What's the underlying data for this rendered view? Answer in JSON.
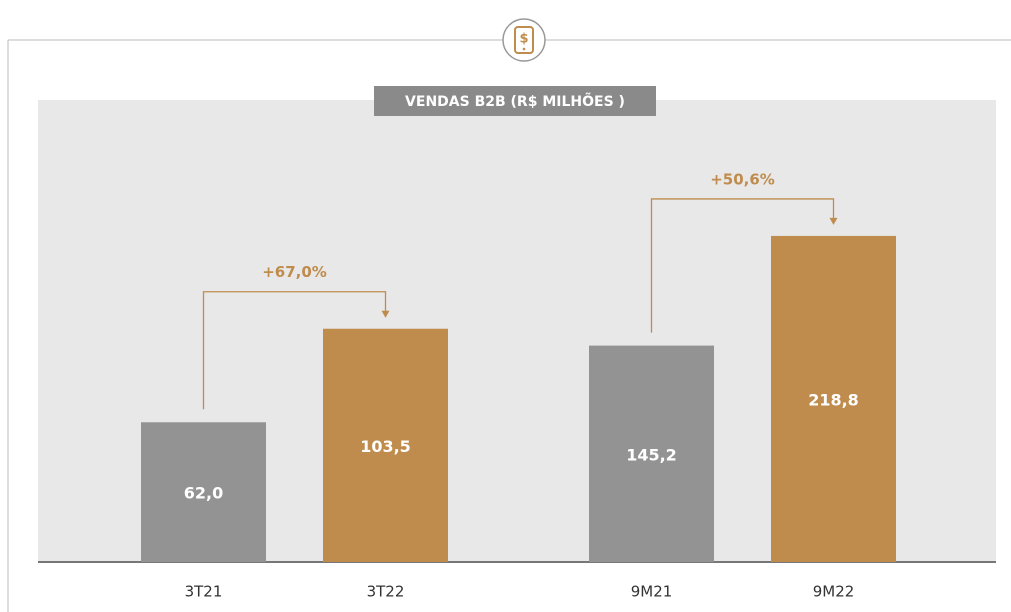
{
  "title": "VENDAS B2B (R$ MILHÕES )",
  "chart_data": [
    {
      "type": "bar",
      "categories": [
        "3T21",
        "3T22"
      ],
      "values": [
        62.0,
        103.5
      ],
      "value_labels": [
        "62,0",
        "103,5"
      ],
      "colors": [
        "#939393",
        "#bf8c4e"
      ],
      "annotation": "+67,0%",
      "ylim": [
        0,
        205
      ]
    },
    {
      "type": "bar",
      "categories": [
        "9M21",
        "9M22"
      ],
      "values": [
        145.2,
        218.8
      ],
      "value_labels": [
        "145,2",
        "218,8"
      ],
      "colors": [
        "#939393",
        "#bf8c4e"
      ],
      "annotation": "+50,6%",
      "ylim": [
        0,
        310
      ]
    }
  ]
}
